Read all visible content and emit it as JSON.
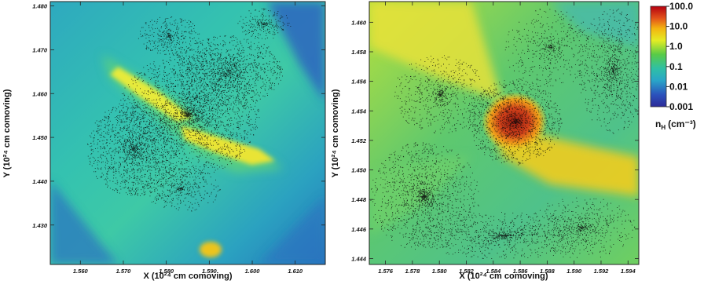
{
  "chart_data": [
    {
      "type": "heatmap",
      "xlabel": "X (10²⁴ cm comoving)",
      "ylabel": "Y (10²⁴ cm comoving)",
      "xlim": [
        1.553,
        1.617
      ],
      "ylim": [
        1.421,
        1.481
      ],
      "x_ticks": [
        "1.560",
        "1.570",
        "1.580",
        "1.590",
        "1.600",
        "1.610"
      ],
      "y_ticks": [
        "1.430",
        "1.440",
        "1.450",
        "1.460",
        "1.470",
        "1.480"
      ]
    },
    {
      "type": "heatmap",
      "xlabel": "X (10²⁴ cm comoving)",
      "ylabel": "Y (10²⁴ cm comoving)",
      "xlim": [
        1.5748,
        1.5948
      ],
      "ylim": [
        1.4436,
        1.4614
      ],
      "x_ticks": [
        "1.576",
        "1.578",
        "1.580",
        "1.582",
        "1.584",
        "1.586",
        "1.588",
        "1.590",
        "1.592",
        "1.594"
      ],
      "y_ticks": [
        "1.444",
        "1.446",
        "1.448",
        "1.450",
        "1.452",
        "1.454",
        "1.456",
        "1.458",
        "1.460"
      ]
    }
  ],
  "colorbar": {
    "label": "n",
    "label_sub": "H",
    "label_unit": "(cm⁻³)",
    "scale": "log",
    "ticks": [
      "100.0",
      "10.0",
      "1.0",
      "0.1",
      "0.01",
      "0.001"
    ],
    "colors": [
      "#c0000c",
      "#e9591b",
      "#f2c40b",
      "#e3ef27",
      "#5bcd46",
      "#2fc1a1",
      "#2aa9c8",
      "#2b5fc2",
      "#2e2f9c"
    ]
  }
}
